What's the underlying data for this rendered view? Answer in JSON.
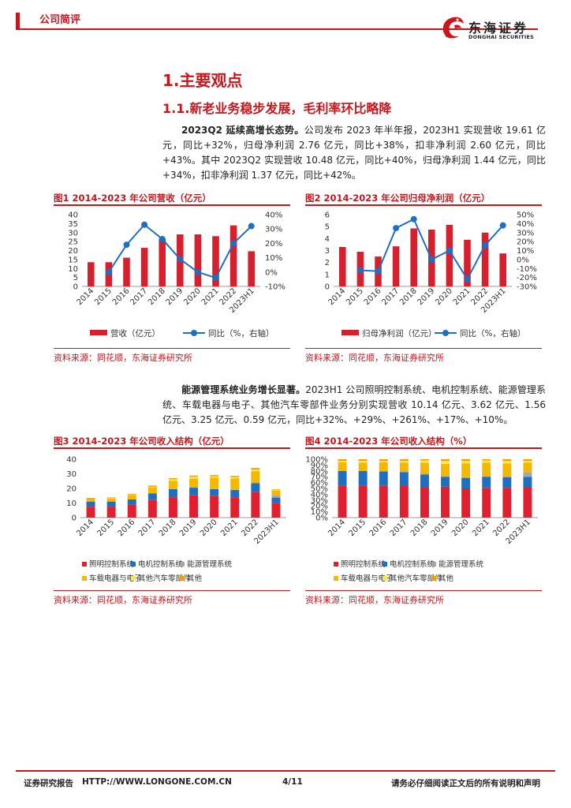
{
  "header": {
    "tag": "公司简评",
    "logo_cn": "东海证券",
    "logo_en": "DONGHAI SECURITIES"
  },
  "section": {
    "h1": "1.主要观点",
    "h2": "1.1.新老业务稳步发展，毛利率环比略降"
  },
  "para1": {
    "bold": "2023Q2 延续高增长态势。",
    "text": "公司发布 2023 年半年报，2023H1 实现营收 19.61 亿元，同比+32%，归母净利润 2.76 亿元，同比+38%，扣非净利润 2.60 亿元，同比+43%。其中 2023Q2 实现营收 10.48 亿元，同比+40%，归母净利润 1.44 亿元，同比+34%，扣非净利润 1.37 亿元，同比+42%。"
  },
  "para2": {
    "bold": "能源管理系统业务增长显著。",
    "text": "2023H1 公司照明控制系统、电机控制系统、能源管理系统、车载电器与电子、其他汽车零部件业务分别实现营收 10.14 亿元、3.62 亿元、1.56 亿元、3.25 亿元、0.59 亿元，同比+32%、+29%、+261%、+17%、+10%。"
  },
  "figures": {
    "fig1_title": "图1 2014-2023 年公司营收（亿元）",
    "fig2_title": "图2 2014-2023 年公司归母净利润（亿元）",
    "fig3_title": "图3 2014-2023 年公司收入结构（亿元）",
    "fig4_title": "图4 2014-2023 年公司收入结构（%）",
    "source": "资料来源：同花顺，东海证券研究所"
  },
  "footer": {
    "left": "证券研究报告",
    "url": "HTTP://WWW.LONGONE.COM.CN",
    "page": "4/11",
    "right": "请务必仔细阅读正文后的所有说明和声明"
  },
  "chart_data": [
    {
      "type": "bar",
      "title": "图1 2014-2023 年公司营收（亿元）",
      "categories": [
        "2014",
        "2015",
        "2016",
        "2017",
        "2018",
        "2019",
        "2020",
        "2021",
        "2022",
        "2023H1"
      ],
      "series": [
        {
          "name": "营收（亿元）",
          "kind": "bar",
          "axis": "left",
          "values": [
            13.5,
            13.5,
            16,
            21.5,
            26.5,
            29,
            29,
            28,
            34,
            19.6
          ]
        },
        {
          "name": "同比（%，右轴）",
          "kind": "line",
          "axis": "right",
          "values": [
            null,
            0,
            19,
            33,
            23,
            9,
            0,
            -4,
            20,
            32
          ]
        }
      ],
      "ylim": [
        0,
        40
      ],
      "yticks": [
        0,
        5,
        10,
        15,
        20,
        25,
        30,
        35,
        40
      ],
      "y2lim": [
        -10,
        40
      ],
      "y2ticks": [
        "-10%",
        "0%",
        "10%",
        "20%",
        "30%",
        "40%"
      ],
      "legend": [
        "营收（亿元）",
        "同比（%，右轴）"
      ]
    },
    {
      "type": "bar",
      "title": "图2 2014-2023 年公司归母净利润（亿元）",
      "categories": [
        "2014",
        "2015",
        "2016",
        "2017",
        "2018",
        "2019",
        "2020",
        "2021",
        "2022",
        "2023H1"
      ],
      "series": [
        {
          "name": "归母净利润（亿元）",
          "kind": "bar",
          "axis": "left",
          "values": [
            3.3,
            2.9,
            2.5,
            3.35,
            4.85,
            4.75,
            5.15,
            3.9,
            4.5,
            2.76
          ]
        },
        {
          "name": "同比（%，右轴）",
          "kind": "line",
          "axis": "right",
          "values": [
            null,
            -12,
            -13,
            35,
            45,
            0,
            10,
            -22,
            16,
            38
          ]
        }
      ],
      "ylim": [
        0,
        6
      ],
      "yticks": [
        0,
        1,
        2,
        3,
        4,
        5,
        6
      ],
      "y2lim": [
        -30,
        50
      ],
      "y2ticks": [
        "-30%",
        "-20%",
        "-10%",
        "0%",
        "10%",
        "20%",
        "30%",
        "40%",
        "50%"
      ],
      "legend": [
        "归母净利润（亿元）",
        "同比（%，右轴）"
      ]
    },
    {
      "type": "bar",
      "stacked": true,
      "title": "图3 2014-2023 年公司收入结构（亿元）",
      "categories": [
        "2014",
        "2015",
        "2016",
        "2017",
        "2018",
        "2019",
        "2020",
        "2021",
        "2022",
        "2023H1"
      ],
      "series": [
        {
          "name": "照明控制系统",
          "color": "#e0202e",
          "values": [
            7.5,
            7.5,
            9,
            12,
            14,
            15.5,
            15,
            14,
            17.5,
            10.1
          ]
        },
        {
          "name": "电机控制系统",
          "color": "#1f6fc0",
          "values": [
            3.5,
            3.5,
            3.5,
            4.5,
            5.5,
            5,
            4.5,
            5,
            6,
            3.6
          ]
        },
        {
          "name": "能源管理系统",
          "color": "#a6a6a6",
          "values": [
            0,
            0,
            0,
            0.3,
            0.3,
            0.3,
            0.3,
            0.3,
            0.8,
            1.6
          ]
        },
        {
          "name": "车载电器与电子",
          "color": "#f5b800",
          "values": [
            2,
            2,
            3,
            4,
            5.5,
            6,
            7.5,
            7.5,
            7.5,
            3.3
          ]
        },
        {
          "name": "其他汽车零部件",
          "color": "#ffe84d",
          "values": [
            0,
            0.3,
            0.3,
            0.5,
            1,
            1.2,
            1,
            1,
            1.2,
            0.6
          ]
        },
        {
          "name": "其他",
          "color": "#f0a000",
          "values": [
            0.5,
            0.5,
            0.5,
            0.7,
            0.7,
            0.8,
            0.8,
            0.8,
            1,
            0.3
          ]
        }
      ],
      "ylim": [
        0,
        40
      ],
      "yticks": [
        0,
        10,
        20,
        30,
        40
      ],
      "legend": [
        "照明控制系统",
        "电机控制系统",
        "能源管理系统",
        "车载电器与电子",
        "其他汽车零部件",
        "其他"
      ]
    },
    {
      "type": "bar",
      "stacked": true,
      "title": "图4 2014-2023 年公司收入结构（%）",
      "categories": [
        "2014",
        "2015",
        "2016",
        "2017",
        "2018",
        "2019",
        "2020",
        "2021",
        "2022",
        "2023H1"
      ],
      "series": [
        {
          "name": "照明控制系统",
          "color": "#e0202e",
          "values": [
            55,
            55,
            55,
            54,
            52,
            53,
            50,
            51,
            51,
            52
          ]
        },
        {
          "name": "电机控制系统",
          "color": "#1f6fc0",
          "values": [
            25,
            25,
            24,
            24,
            22,
            17,
            18,
            19,
            18,
            18
          ]
        },
        {
          "name": "能源管理系统",
          "color": "#a6a6a6",
          "values": [
            0,
            0,
            0,
            1,
            1,
            1,
            1,
            1,
            2,
            8
          ]
        },
        {
          "name": "车载电器与电子",
          "color": "#f5b800",
          "values": [
            15,
            14,
            16,
            15,
            19,
            21,
            24,
            23,
            22,
            16
          ]
        },
        {
          "name": "其他汽车零部件",
          "color": "#ffe84d",
          "values": [
            2,
            3,
            2,
            3,
            4,
            5,
            4,
            4,
            4,
            3
          ]
        },
        {
          "name": "其他",
          "color": "#f0a000",
          "values": [
            3,
            3,
            3,
            3,
            2,
            3,
            3,
            2,
            3,
            3
          ]
        }
      ],
      "ylim": [
        0,
        100
      ],
      "yticks": [
        "0%",
        "10%",
        "20%",
        "30%",
        "40%",
        "50%",
        "60%",
        "70%",
        "80%",
        "90%",
        "100%"
      ],
      "legend": [
        "照明控制系统",
        "电机控制系统",
        "能源管理系统",
        "车载电器与电子",
        "其他汽车零部件",
        "其他"
      ]
    }
  ]
}
